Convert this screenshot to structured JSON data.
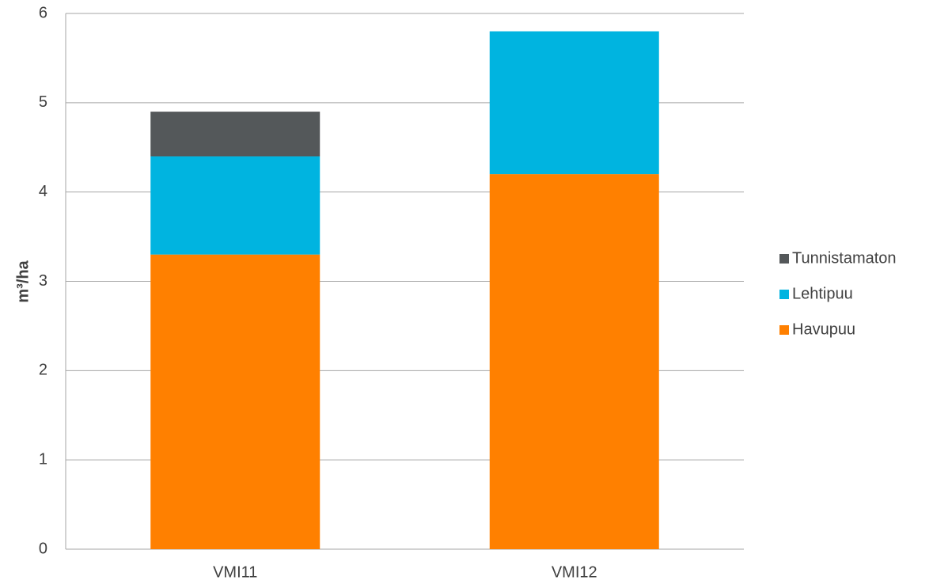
{
  "chart_data": {
    "type": "stacked_bar",
    "y_label": "m³/ha",
    "categories": [
      "VMI11",
      "VMI12"
    ],
    "series": [
      {
        "name": "Havupuu",
        "color": "#ff8000",
        "values": [
          3.3,
          4.2
        ]
      },
      {
        "name": "Lehtipuu",
        "color": "#00b4e0",
        "values": [
          1.1,
          1.6
        ]
      },
      {
        "name": "Tunnistamaton",
        "color": "#54585a",
        "values": [
          0.5,
          0
        ]
      }
    ],
    "ylim": [
      0,
      6
    ],
    "yticks": [
      0,
      1,
      2,
      3,
      4,
      5,
      6
    ],
    "grid": true,
    "legend": "right"
  }
}
